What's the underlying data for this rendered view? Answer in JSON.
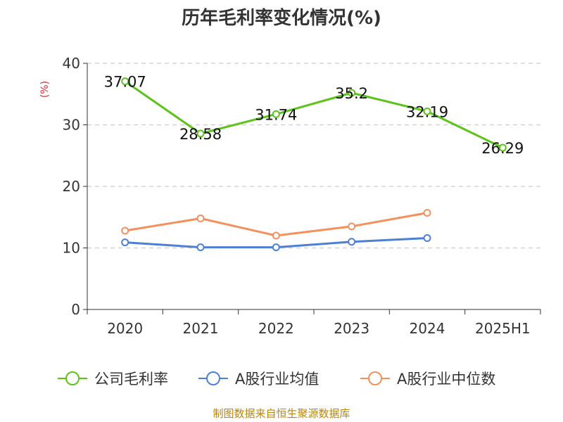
{
  "chart_data": {
    "type": "line",
    "title": "历年毛利率变化情况(%)",
    "ylabel": "(%)",
    "categories": [
      "2020",
      "2021",
      "2022",
      "2023",
      "2024",
      "2025H1"
    ],
    "ylim": [
      0,
      40
    ],
    "yticks": [
      0,
      10,
      20,
      30,
      40
    ],
    "grid": true,
    "legend_position": "bottom",
    "series": [
      {
        "name": "公司毛利率",
        "color": "#5dc31a",
        "values": [
          37.07,
          28.58,
          31.74,
          35.2,
          32.19,
          26.29
        ],
        "labels": [
          "37.07",
          "28.58",
          "31.74",
          "35.2",
          "32.19",
          "26.29"
        ]
      },
      {
        "name": "A股行业均值",
        "color": "#4e7fd8",
        "values": [
          10.9,
          10.1,
          10.1,
          11.0,
          11.6,
          null
        ]
      },
      {
        "name": "A股行业中位数",
        "color": "#f5905d",
        "values": [
          12.8,
          14.8,
          12.0,
          13.5,
          15.7,
          null
        ]
      }
    ],
    "source": "制图数据来自恒生聚源数据库"
  }
}
